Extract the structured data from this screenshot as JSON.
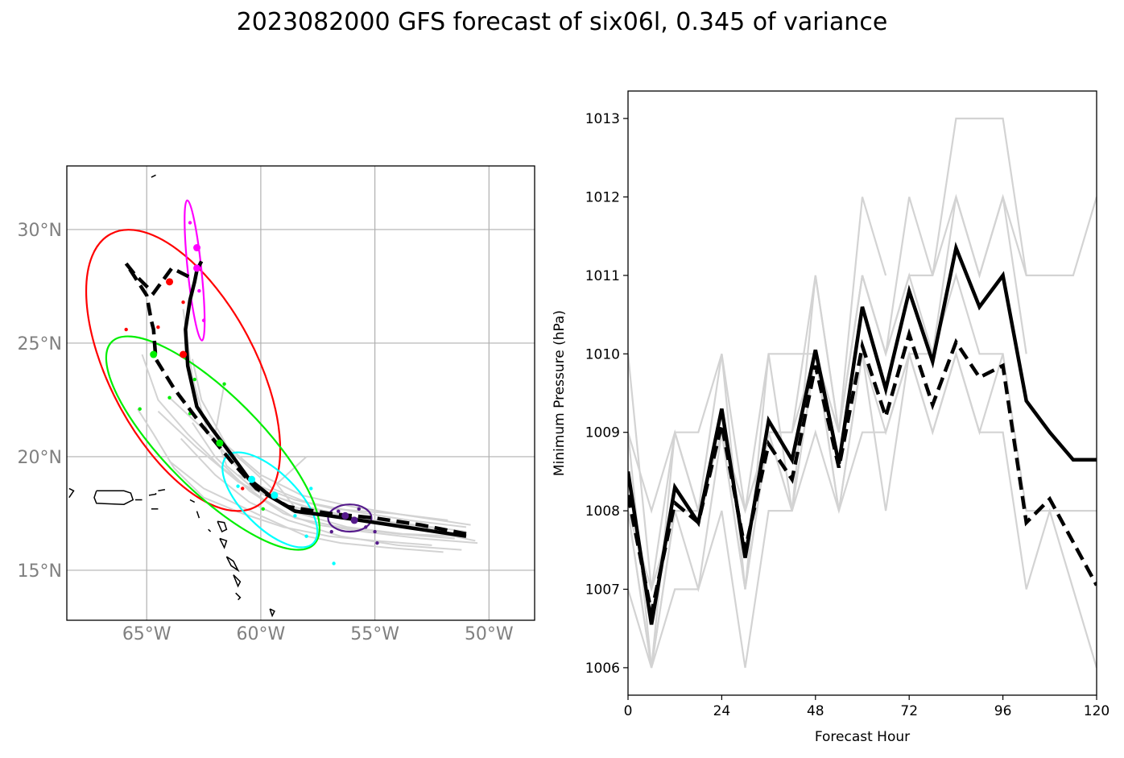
{
  "title": "2023082000 GFS forecast of six06l, 0.345 of variance",
  "chart_data": [
    {
      "type": "line",
      "name": "track_map",
      "xlim": [
        -68.5,
        -48.0
      ],
      "ylim": [
        12.8,
        32.8
      ],
      "grid": true,
      "x_tick_values": [
        -65,
        -60,
        -55,
        -50
      ],
      "x_tick_labels": [
        "65°W",
        "60°W",
        "55°W",
        "50°W"
      ],
      "y_tick_values": [
        15,
        20,
        25,
        30
      ],
      "y_tick_labels": [
        "15°N",
        "20°N",
        "25°N",
        "30°N"
      ],
      "mean_track": {
        "lon": [
          -51.0,
          -53.0,
          -55.0,
          -57.0,
          -58.5,
          -59.5,
          -60.5,
          -61.3,
          -62.2,
          -62.8,
          -63.2,
          -63.3,
          -63.1,
          -62.9,
          -62.8,
          -62.6
        ],
        "lat": [
          16.5,
          16.8,
          17.1,
          17.4,
          17.6,
          18.2,
          19.0,
          20.1,
          21.3,
          22.2,
          24.0,
          25.6,
          26.9,
          27.7,
          28.2,
          28.6
        ]
      },
      "dashed_track": {
        "lon": [
          -51.0,
          -53.0,
          -55.0,
          -57.0,
          -58.8,
          -60.2,
          -61.3,
          -62.6,
          -63.8,
          -64.6,
          -64.7,
          -64.8,
          -65.0,
          -65.9,
          -65.5,
          -64.7,
          -63.9,
          -63.1
        ],
        "lat": [
          16.6,
          17.0,
          17.3,
          17.5,
          17.8,
          18.6,
          19.8,
          21.4,
          23.0,
          24.3,
          25.6,
          26.0,
          27.1,
          28.5,
          28.0,
          27.2,
          28.3,
          27.9
        ]
      },
      "ensemble_tracks": [
        {
          "lon": [
            -50.5,
            -53.0,
            -55.5,
            -57.5,
            -59.0,
            -60.5,
            -62.0,
            -63.0
          ],
          "lat": [
            16.2,
            16.4,
            16.7,
            17.0,
            17.5,
            18.5,
            20.0,
            21.5
          ]
        },
        {
          "lon": [
            -51.0,
            -53.5,
            -56.0,
            -58.0,
            -59.5,
            -60.8,
            -62.5,
            -64.0
          ],
          "lat": [
            16.9,
            17.2,
            17.6,
            18.0,
            18.6,
            19.8,
            21.2,
            22.6
          ]
        },
        {
          "lon": [
            -51.5,
            -54.0,
            -56.5,
            -58.5,
            -60.0,
            -61.8,
            -63.2,
            -64.5,
            -65.2
          ],
          "lat": [
            16.4,
            16.6,
            16.9,
            17.3,
            18.2,
            19.6,
            21.0,
            22.5,
            24.5
          ]
        },
        {
          "lon": [
            -50.8,
            -53.5,
            -56.0,
            -58.2,
            -60.0,
            -61.5,
            -62.6,
            -63.0
          ],
          "lat": [
            17.0,
            17.4,
            17.8,
            18.3,
            19.2,
            20.5,
            22.5,
            24.3
          ]
        },
        {
          "lon": [
            -51.2,
            -54.0,
            -56.5,
            -58.8,
            -60.5,
            -62.0,
            -63.5
          ],
          "lat": [
            15.9,
            16.1,
            16.5,
            17.2,
            18.0,
            19.2,
            20.8
          ]
        },
        {
          "lon": [
            -52.0,
            -54.5,
            -57.0,
            -59.0,
            -61.0,
            -62.8,
            -64.5
          ],
          "lat": [
            16.8,
            17.1,
            17.4,
            17.9,
            18.9,
            20.4,
            22.0
          ]
        },
        {
          "lon": [
            -50.6,
            -53.0,
            -55.5,
            -57.5,
            -59.8,
            -61.0,
            -62.3,
            -63.0,
            -63.4
          ],
          "lat": [
            16.3,
            16.8,
            17.2,
            17.6,
            18.4,
            19.5,
            21.0,
            23.5,
            26.5
          ]
        },
        {
          "lon": [
            -51.3,
            -53.8,
            -56.2,
            -58.3,
            -59.3,
            -58.0
          ],
          "lat": [
            16.5,
            16.6,
            16.9,
            17.5,
            18.8,
            20.0
          ]
        },
        {
          "lon": [
            -51.0,
            -53.2,
            -55.8,
            -58.0,
            -60.2,
            -61.5,
            -62.0,
            -61.6
          ],
          "lat": [
            16.7,
            17.0,
            17.3,
            17.8,
            18.5,
            19.6,
            21.0,
            23.2
          ]
        },
        {
          "lon": [
            -52.5,
            -55.0,
            -57.0,
            -59.0,
            -60.8,
            -62.5,
            -63.8,
            -64.7,
            -65.4
          ],
          "lat": [
            16.1,
            16.3,
            16.5,
            16.9,
            17.5,
            18.2,
            19.5,
            21.0,
            22.1
          ]
        },
        {
          "lon": [
            -51.8,
            -54.2,
            -56.8,
            -58.5,
            -59.8,
            -61.0
          ],
          "lat": [
            17.2,
            17.5,
            17.7,
            18.1,
            18.6,
            19.2
          ]
        },
        {
          "lon": [
            -52.0,
            -54.5,
            -56.5,
            -58.0,
            -60.0,
            -62.5,
            -64.0
          ],
          "lat": [
            15.8,
            16.0,
            16.2,
            16.5,
            17.4,
            18.6,
            19.8
          ]
        }
      ],
      "ellipses": [
        {
          "color": "#ff0000",
          "cx": -63.4,
          "cy": 23.8,
          "rx": 3.2,
          "ry": 6.8,
          "angle_deg": -28
        },
        {
          "color": "#00ee00",
          "cx": -62.1,
          "cy": 20.6,
          "rx": 2.1,
          "ry": 6.3,
          "angle_deg": -45
        },
        {
          "color": "#00ffff",
          "cx": -59.6,
          "cy": 18.1,
          "rx": 1.2,
          "ry": 2.7,
          "angle_deg": -45
        },
        {
          "color": "#ff00ff",
          "cx": -62.9,
          "cy": 28.2,
          "rx": 0.3,
          "ry": 3.1,
          "angle_deg": -6
        },
        {
          "color": "#551a8b",
          "cx": -56.1,
          "cy": 17.3,
          "rx": 0.95,
          "ry": 0.6,
          "angle_deg": 0
        }
      ],
      "mean_points": [
        {
          "color": "#ff0000",
          "lon": -64.0,
          "lat": 27.7
        },
        {
          "color": "#ff0000",
          "lon": -63.4,
          "lat": 24.5
        },
        {
          "color": "#00ee00",
          "lon": -64.7,
          "lat": 24.5
        },
        {
          "color": "#00ee00",
          "lon": -61.8,
          "lat": 20.6
        },
        {
          "color": "#00ffff",
          "lon": -60.4,
          "lat": 19.0
        },
        {
          "color": "#00ffff",
          "lon": -59.4,
          "lat": 18.3
        },
        {
          "color": "#ff00ff",
          "lon": -62.8,
          "lat": 29.2
        },
        {
          "color": "#ff00ff",
          "lon": -62.8,
          "lat": 28.3
        },
        {
          "color": "#551a8b",
          "lon": -56.3,
          "lat": 17.4
        },
        {
          "color": "#551a8b",
          "lon": -55.9,
          "lat": 17.2
        }
      ],
      "member_points": [
        {
          "color": "#ff0000",
          "lon": -65.9,
          "lat": 25.6
        },
        {
          "color": "#ff0000",
          "lon": -64.5,
          "lat": 25.7
        },
        {
          "color": "#ff0000",
          "lon": -63.4,
          "lat": 26.8
        },
        {
          "color": "#ff0000",
          "lon": -60.8,
          "lat": 18.6
        },
        {
          "color": "#00ee00",
          "lon": -65.3,
          "lat": 22.1
        },
        {
          "color": "#00ee00",
          "lon": -64.0,
          "lat": 22.6
        },
        {
          "color": "#00ee00",
          "lon": -63.1,
          "lat": 21.9
        },
        {
          "color": "#00ee00",
          "lon": -62.9,
          "lat": 23.4
        },
        {
          "color": "#00ee00",
          "lon": -61.6,
          "lat": 23.2
        },
        {
          "color": "#00ee00",
          "lon": -59.9,
          "lat": 17.7
        },
        {
          "color": "#00ffff",
          "lon": -61.0,
          "lat": 18.7
        },
        {
          "color": "#00ffff",
          "lon": -58.5,
          "lat": 17.4
        },
        {
          "color": "#00ffff",
          "lon": -57.8,
          "lat": 18.6
        },
        {
          "color": "#00ffff",
          "lon": -56.8,
          "lat": 15.3
        },
        {
          "color": "#00ffff",
          "lon": -58.0,
          "lat": 16.5
        },
        {
          "color": "#00ffff",
          "lon": -59.0,
          "lat": 17.9
        },
        {
          "color": "#ff00ff",
          "lon": -63.1,
          "lat": 30.3
        },
        {
          "color": "#ff00ff",
          "lon": -62.7,
          "lat": 27.3
        },
        {
          "color": "#ff00ff",
          "lon": -62.5,
          "lat": 26.0
        },
        {
          "color": "#551a8b",
          "lon": -56.9,
          "lat": 16.7
        },
        {
          "color": "#551a8b",
          "lon": -55.0,
          "lat": 16.7
        },
        {
          "color": "#551a8b",
          "lon": -54.9,
          "lat": 16.2
        },
        {
          "color": "#551a8b",
          "lon": -55.4,
          "lat": 16.9
        },
        {
          "color": "#551a8b",
          "lon": -56.6,
          "lat": 17.6
        },
        {
          "color": "#551a8b",
          "lon": -55.7,
          "lat": 17.7
        }
      ],
      "coastlines": [
        {
          "lon": [
            -67.2,
            -66.0,
            -65.7,
            -65.6,
            -66.0,
            -67.2,
            -67.3,
            -67.2
          ],
          "lat": [
            18.5,
            18.5,
            18.4,
            18.1,
            17.9,
            17.95,
            18.2,
            18.5
          ]
        },
        {
          "lon": [
            -65.5,
            -65.2
          ],
          "lat": [
            18.1,
            18.1
          ]
        },
        {
          "lon": [
            -64.9,
            -64.6,
            -64.6
          ],
          "lat": [
            18.3,
            18.35,
            18.4
          ]
        },
        {
          "lon": [
            -64.5,
            -64.2
          ],
          "lat": [
            18.5,
            18.55
          ]
        },
        {
          "lon": [
            -64.8,
            -64.5
          ],
          "lat": [
            17.7,
            17.7
          ]
        },
        {
          "lon": [
            -63.1,
            -62.9
          ],
          "lat": [
            18.1,
            18.0
          ]
        },
        {
          "lon": [
            -62.8,
            -62.7
          ],
          "lat": [
            17.6,
            17.3
          ]
        },
        {
          "lon": [
            -62.3,
            -62.2
          ],
          "lat": [
            16.8,
            16.7
          ]
        },
        {
          "lon": [
            -61.9,
            -61.6,
            -61.5,
            -61.7,
            -61.9
          ],
          "lat": [
            17.15,
            17.1,
            16.8,
            16.7,
            17.15
          ]
        },
        {
          "lon": [
            -61.8,
            -61.5,
            -61.6,
            -61.8
          ],
          "lat": [
            16.4,
            16.3,
            16.0,
            16.4
          ]
        },
        {
          "lon": [
            -61.5,
            -61.2,
            -61.0,
            -61.3,
            -61.5
          ],
          "lat": [
            15.6,
            15.4,
            15.0,
            15.2,
            15.6
          ]
        },
        {
          "lon": [
            -61.2,
            -60.9,
            -61.0,
            -61.2
          ],
          "lat": [
            14.8,
            14.5,
            14.3,
            14.8
          ]
        },
        {
          "lon": [
            -61.1,
            -60.9,
            -61.0
          ],
          "lat": [
            14.0,
            13.8,
            13.7
          ]
        },
        {
          "lon": [
            -59.6,
            -59.4,
            -59.5,
            -59.6
          ],
          "lat": [
            13.3,
            13.2,
            13.0,
            13.3
          ]
        },
        {
          "lon": [
            -64.8,
            -64.6
          ],
          "lat": [
            32.3,
            32.4
          ]
        },
        {
          "lon": [
            -68.4,
            -68.2,
            -68.4
          ],
          "lat": [
            18.6,
            18.5,
            18.2
          ]
        }
      ]
    },
    {
      "type": "line",
      "name": "pressure",
      "xlabel": "Forecast Hour",
      "ylabel": "Minimum Pressure (hPa)",
      "xlim": [
        0,
        120
      ],
      "ylim": [
        1005.65,
        1013.35
      ],
      "x_ticks": [
        0,
        24,
        48,
        72,
        96,
        120
      ],
      "y_ticks": [
        1006,
        1007,
        1008,
        1009,
        1010,
        1011,
        1012,
        1013
      ],
      "x": [
        0,
        6,
        12,
        18,
        24,
        30,
        36,
        42,
        48,
        54,
        60,
        66,
        72,
        78,
        84,
        90,
        96,
        102,
        108,
        114,
        120
      ],
      "mean_line": [
        1008.5,
        1006.55,
        1008.3,
        1007.85,
        1009.3,
        1007.4,
        1009.15,
        1008.65,
        1010.05,
        1008.6,
        1010.6,
        1009.55,
        1010.8,
        1009.9,
        1011.35,
        1010.6,
        1011.0,
        1009.4,
        1009.0,
        1008.65,
        1008.65
      ],
      "dashed_line": [
        1008.2,
        1006.7,
        1008.1,
        1007.85,
        1009.1,
        1007.5,
        1008.85,
        1008.4,
        1009.85,
        1008.55,
        1010.1,
        1009.2,
        1010.25,
        1009.35,
        1010.15,
        1009.7,
        1009.85,
        1007.85,
        1008.15,
        1007.6,
        1007.05
      ],
      "members": [
        [
          1008,
          1006,
          1009,
          1008,
          1010,
          1007,
          1010,
          1010,
          1010,
          1009,
          1011,
          1010,
          1011,
          1011,
          1012,
          1011,
          1012,
          1011,
          1011,
          1011,
          1012
        ],
        [
          1010,
          1007,
          1009,
          1009,
          1010,
          1008,
          1009,
          1009,
          1011,
          1009,
          1012,
          1011
        ],
        [
          1009,
          1006,
          1008,
          1008,
          1009,
          1007,
          1009,
          1008,
          1010,
          1009,
          1011,
          1010,
          1012,
          1011,
          1013,
          1013,
          1013,
          1011
        ],
        [
          1008,
          1007,
          1008,
          1008,
          1009,
          1007,
          1009,
          1009,
          1010,
          1008,
          1010,
          1009,
          1010,
          1010,
          1012,
          1011,
          1012,
          1010
        ],
        [
          1009,
          1008,
          1009,
          1008,
          1009,
          1008,
          1009,
          1008,
          1011,
          1009,
          1011,
          1010,
          1011,
          1010,
          1011,
          1010,
          1010,
          1008,
          1008,
          1008,
          1008
        ],
        [
          1008,
          1006,
          1007,
          1007,
          1009,
          1008,
          1010,
          1008,
          1010,
          1008,
          1010,
          1008,
          1010,
          1009,
          1010,
          1009,
          1009,
          1007,
          1008,
          1007,
          1006
        ],
        [
          1007,
          1006,
          1008,
          1007,
          1008,
          1006,
          1008,
          1008,
          1009,
          1008,
          1009,
          1009,
          1010,
          1009,
          1010,
          1009,
          1010
        ]
      ]
    }
  ],
  "colors": {
    "mean_line": "#000000",
    "ensemble": "#d3d3d3",
    "grid": "#b0b0b0",
    "tick_text": "#808080"
  }
}
